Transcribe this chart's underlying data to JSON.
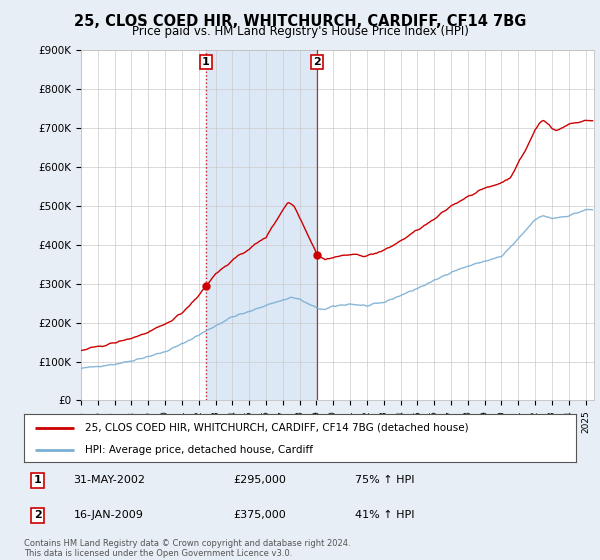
{
  "title": "25, CLOS COED HIR, WHITCHURCH, CARDIFF, CF14 7BG",
  "subtitle": "Price paid vs. HM Land Registry's House Price Index (HPI)",
  "ytick_labels": [
    "£0",
    "£100K",
    "£200K",
    "£300K",
    "£400K",
    "£500K",
    "£600K",
    "£700K",
    "£800K",
    "£900K"
  ],
  "yticks": [
    0,
    100000,
    200000,
    300000,
    400000,
    500000,
    600000,
    700000,
    800000,
    900000
  ],
  "legend_line1": "25, CLOS COED HIR, WHITCHURCH, CARDIFF, CF14 7BG (detached house)",
  "legend_line2": "HPI: Average price, detached house, Cardiff",
  "transaction1_date": "31-MAY-2002",
  "transaction1_price": "£295,000",
  "transaction1_hpi": "75% ↑ HPI",
  "transaction2_date": "16-JAN-2009",
  "transaction2_price": "£375,000",
  "transaction2_hpi": "41% ↑ HPI",
  "footer": "Contains HM Land Registry data © Crown copyright and database right 2024.\nThis data is licensed under the Open Government Licence v3.0.",
  "hpi_color": "#7bafd4",
  "price_color": "#cc0000",
  "vline_color": "#cc0000",
  "background_color": "#e8eef5",
  "plot_bg_color": "#ffffff",
  "span_color": "#dce8f5",
  "transaction1_x": 2002.42,
  "transaction1_y": 295000,
  "transaction2_x": 2009.04,
  "transaction2_y": 375000,
  "xmin": 1995,
  "xmax": 2025.5,
  "ymin": 0,
  "ymax": 900000
}
